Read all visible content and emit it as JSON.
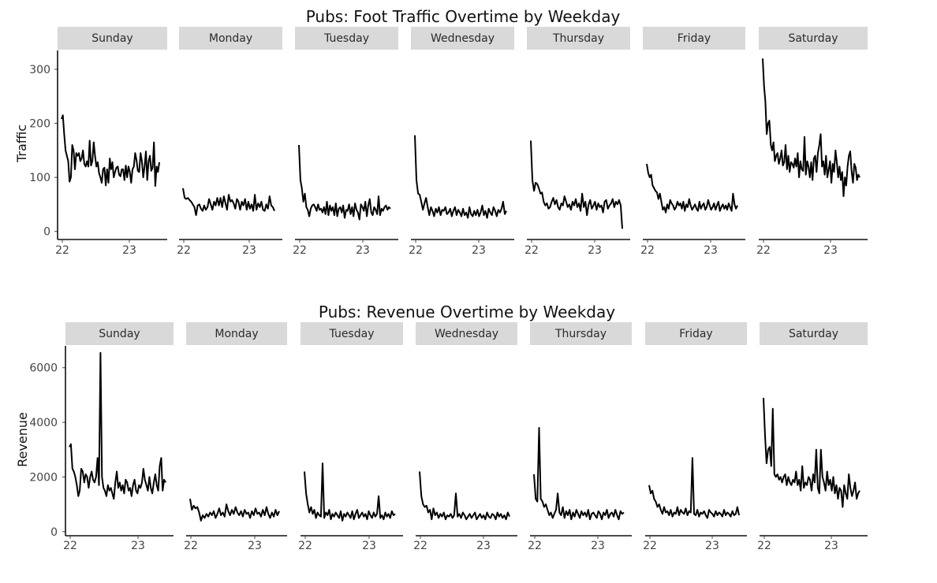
{
  "chart_data": [
    {
      "type": "line",
      "title": "Pubs: Foot Traffic Overtime by Weekday",
      "ylabel": "Traffic",
      "xlabel": "",
      "ylim": [
        -15,
        335
      ],
      "yticks": [
        0,
        100,
        200,
        300
      ],
      "xticks": [
        "22",
        "23"
      ],
      "grid": false,
      "facets": [
        {
          "label": "Sunday",
          "values": [
            208,
            215,
            180,
            150,
            140,
            130,
            92,
            100,
            160,
            150,
            115,
            145,
            140,
            145,
            130,
            135,
            150,
            125,
            120,
            130,
            120,
            168,
            122,
            130,
            165,
            140,
            120,
            128,
            108,
            100,
            90,
            115,
            118,
            85,
            115,
            90,
            135,
            115,
            128,
            100,
            110,
            118,
            120,
            105,
            102,
            115,
            115,
            95,
            122,
            100,
            120,
            110,
            90,
            115,
            120,
            145,
            132,
            112,
            110,
            145,
            130,
            100,
            120,
            148,
            95,
            130,
            140,
            112,
            118,
            165,
            84,
            120,
            110,
            128
          ]
        },
        {
          "label": "Monday",
          "values": [
            80,
            62,
            60,
            62,
            58,
            55,
            50,
            45,
            30,
            48,
            50,
            42,
            38,
            48,
            40,
            45,
            60,
            50,
            40,
            55,
            48,
            62,
            48,
            62,
            45,
            65,
            52,
            40,
            68,
            55,
            58,
            52,
            42,
            60,
            55,
            40,
            55,
            48,
            60,
            40,
            55,
            42,
            50,
            38,
            68,
            40,
            52,
            45,
            55,
            40,
            38,
            50,
            42,
            65,
            48,
            45,
            38
          ]
        },
        {
          "label": "Tuesday",
          "values": [
            160,
            95,
            80,
            55,
            70,
            45,
            40,
            28,
            42,
            48,
            50,
            45,
            38,
            50,
            40,
            42,
            35,
            45,
            32,
            55,
            30,
            48,
            38,
            45,
            30,
            52,
            28,
            42,
            45,
            35,
            48,
            25,
            40,
            38,
            50,
            32,
            45,
            28,
            52,
            40,
            35,
            22,
            50,
            45,
            38,
            55,
            28,
            48,
            60,
            35,
            30,
            45,
            40,
            32,
            65,
            30,
            42,
            38,
            45,
            48,
            40,
            45,
            42
          ]
        },
        {
          "label": "Wednesday",
          "values": [
            178,
            95,
            70,
            68,
            55,
            40,
            52,
            62,
            45,
            30,
            45,
            38,
            28,
            42,
            35,
            45,
            30,
            40,
            38,
            45,
            32,
            35,
            42,
            28,
            38,
            45,
            30,
            40,
            35,
            28,
            42,
            30,
            35,
            25,
            45,
            32,
            28,
            38,
            30,
            40,
            28,
            35,
            48,
            30,
            38,
            25,
            42,
            35,
            30,
            45,
            38,
            28,
            40,
            35,
            42,
            55,
            32,
            38
          ]
        },
        {
          "label": "Thursday",
          "values": [
            168,
            95,
            75,
            90,
            88,
            80,
            70,
            72,
            55,
            48,
            52,
            42,
            45,
            55,
            62,
            50,
            58,
            45,
            40,
            52,
            48,
            65,
            55,
            45,
            50,
            40,
            55,
            48,
            60,
            45,
            52,
            38,
            70,
            45,
            55,
            30,
            50,
            58,
            42,
            48,
            55,
            40,
            52,
            45,
            48,
            35,
            55,
            58,
            42,
            48,
            52,
            60,
            45,
            55,
            50,
            58,
            48,
            5
          ]
        },
        {
          "label": "Friday",
          "values": [
            125,
            108,
            100,
            105,
            85,
            80,
            75,
            72,
            60,
            70,
            55,
            40,
            45,
            35,
            50,
            42,
            58,
            52,
            48,
            40,
            45,
            55,
            48,
            52,
            42,
            55,
            38,
            50,
            45,
            60,
            48,
            40,
            45,
            50,
            42,
            38,
            55,
            42,
            48,
            52,
            40,
            45,
            58,
            48,
            40,
            45,
            52,
            40,
            48,
            55,
            38,
            45,
            50,
            42,
            48,
            40,
            52,
            45,
            38,
            70,
            50,
            42,
            48
          ]
        },
        {
          "label": "Saturday",
          "values": [
            320,
            270,
            240,
            180,
            200,
            205,
            160,
            150,
            165,
            130,
            140,
            145,
            125,
            135,
            150,
            122,
            128,
            160,
            115,
            140,
            110,
            128,
            125,
            118,
            135,
            120,
            145,
            100,
            130,
            115,
            112,
            175,
            105,
            130,
            120,
            100,
            128,
            95,
            135,
            140,
            110,
            145,
            160,
            180,
            120,
            130,
            105,
            140,
            100,
            115,
            130,
            90,
            125,
            110,
            150,
            128,
            100,
            120,
            95,
            110,
            65,
            100,
            85,
            120,
            140,
            148,
            110,
            90,
            125,
            118,
            95,
            105,
            100
          ]
        }
      ]
    },
    {
      "type": "line",
      "title": "Pubs: Revenue Overtime by Weekday",
      "ylabel": "Revenue",
      "xlabel": "",
      "ylim": [
        -150,
        6800
      ],
      "yticks": [
        0,
        2000,
        4000,
        6000
      ],
      "xticks": [
        "22",
        "23"
      ],
      "grid": false,
      "facets": [
        {
          "label": "Sunday",
          "values": [
            3100,
            3200,
            2300,
            2200,
            2000,
            1700,
            1300,
            1500,
            2300,
            2200,
            1800,
            2100,
            2000,
            1600,
            2000,
            2200,
            1900,
            1800,
            2000,
            2700,
            1700,
            6550,
            2000,
            1600,
            1500,
            1300,
            1700,
            1500,
            1600,
            1400,
            1200,
            1800,
            2200,
            1600,
            1800,
            1500,
            1700,
            1400,
            1900,
            1800,
            1500,
            1600,
            1300,
            1700,
            1900,
            1500,
            1400,
            1700,
            1600,
            1800,
            2300,
            1900,
            1700,
            1500,
            2000,
            1600,
            1400,
            1800,
            2100,
            1700,
            1500,
            2400,
            2700,
            1500,
            1900,
            1800
          ]
        },
        {
          "label": "Monday",
          "values": [
            1200,
            800,
            950,
            850,
            900,
            700,
            400,
            600,
            500,
            650,
            550,
            700,
            600,
            750,
            500,
            650,
            850,
            600,
            700,
            550,
            1000,
            750,
            600,
            800,
            650,
            900,
            700,
            600,
            750,
            550,
            800,
            650,
            700,
            500,
            750,
            600,
            850,
            650,
            700,
            550,
            800,
            600,
            900,
            650,
            500,
            700,
            550,
            800,
            600,
            750
          ]
        },
        {
          "label": "Tuesday",
          "values": [
            2200,
            1400,
            1000,
            700,
            900,
            650,
            800,
            500,
            700,
            600,
            550,
            2500,
            500,
            700,
            600,
            800,
            450,
            650,
            550,
            700,
            600,
            500,
            750,
            400,
            650,
            550,
            700,
            600,
            500,
            750,
            450,
            650,
            800,
            500,
            600,
            700,
            550,
            650,
            450,
            750,
            600,
            500,
            700,
            550,
            650,
            1300,
            500,
            600,
            450,
            700,
            550,
            650,
            500,
            750,
            600,
            650
          ]
        },
        {
          "label": "Wednesday",
          "values": [
            2200,
            1300,
            1000,
            900,
            950,
            700,
            800,
            450,
            850,
            600,
            700,
            500,
            650,
            550,
            700,
            450,
            600,
            550,
            650,
            500,
            600,
            1400,
            550,
            650,
            500,
            700,
            600,
            450,
            550,
            650,
            500,
            600,
            700,
            450,
            550,
            650,
            500,
            600,
            450,
            700,
            550,
            500,
            650,
            600,
            450,
            700,
            550,
            650,
            500,
            600,
            450,
            700,
            550
          ]
        },
        {
          "label": "Thursday",
          "values": [
            2100,
            1200,
            1100,
            3800,
            1200,
            1100,
            900,
            1000,
            800,
            600,
            700,
            500,
            650,
            800,
            1400,
            700,
            600,
            900,
            500,
            750,
            600,
            800,
            450,
            700,
            550,
            800,
            650,
            500,
            750,
            600,
            700,
            550,
            800,
            450,
            650,
            700,
            600,
            500,
            750,
            650,
            450,
            700,
            600,
            800,
            500,
            650,
            700,
            550,
            800,
            600,
            450,
            750,
            650,
            700
          ]
        },
        {
          "label": "Friday",
          "values": [
            1700,
            1400,
            1500,
            1200,
            1100,
            900,
            1000,
            800,
            650,
            900,
            700,
            750,
            600,
            800,
            550,
            700,
            650,
            900,
            600,
            800,
            700,
            650,
            850,
            600,
            750,
            700,
            2700,
            650,
            600,
            800,
            550,
            700,
            650,
            750,
            600,
            500,
            800,
            700,
            650,
            550,
            750,
            600,
            700,
            650,
            550,
            800,
            600,
            700,
            650,
            550,
            750,
            600,
            650,
            900,
            600
          ]
        },
        {
          "label": "Saturday",
          "values": [
            4900,
            3500,
            2500,
            3000,
            3100,
            2400,
            4500,
            2100,
            2000,
            2100,
            1900,
            2000,
            1800,
            2000,
            2100,
            1700,
            2000,
            1800,
            1700,
            1900,
            1800,
            2200,
            1700,
            1900,
            1500,
            2400,
            1600,
            1800,
            1700,
            2000,
            1900,
            1500,
            2100,
            1800,
            3000,
            1600,
            1400,
            3000,
            2000,
            1800,
            1500,
            2200,
            1700,
            1900,
            1500,
            2000,
            1400,
            1700,
            1200,
            1600,
            1500,
            900,
            1700,
            1400,
            1200,
            2100,
            1600,
            1300,
            1500,
            1800,
            1200,
            1400,
            1500
          ]
        }
      ]
    }
  ]
}
